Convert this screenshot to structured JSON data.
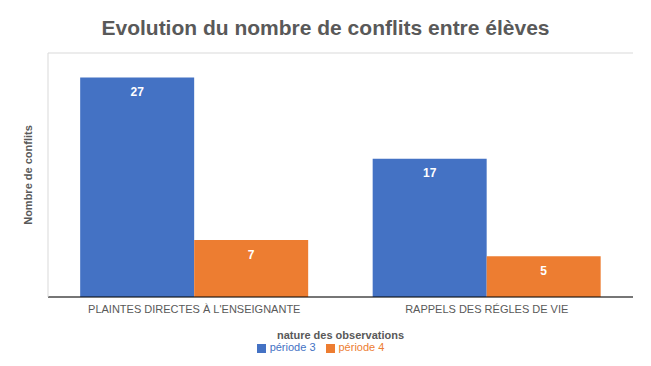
{
  "chart_data": {
    "type": "bar",
    "title": "Evolution du nombre de conflits entre élèves",
    "categories": [
      "PLAINTES DIRECTES À L'ENSEIGNANTE",
      "RAPPELS DES RÉGLES DE VIE"
    ],
    "series": [
      {
        "name": "période 3",
        "color": "#4472c4",
        "values": [
          27,
          17
        ]
      },
      {
        "name": "période 4",
        "color": "#ed7d31",
        "values": [
          7,
          5
        ]
      }
    ],
    "x_label": "nature des observations",
    "y_label": "Nombre de conflits",
    "ylim": [
      0,
      30
    ],
    "yticks": [
      0,
      5,
      10,
      15,
      20,
      25,
      30
    ],
    "grid": true,
    "legend": "bottom",
    "data_labels": true,
    "tick_labels": "x"
  }
}
